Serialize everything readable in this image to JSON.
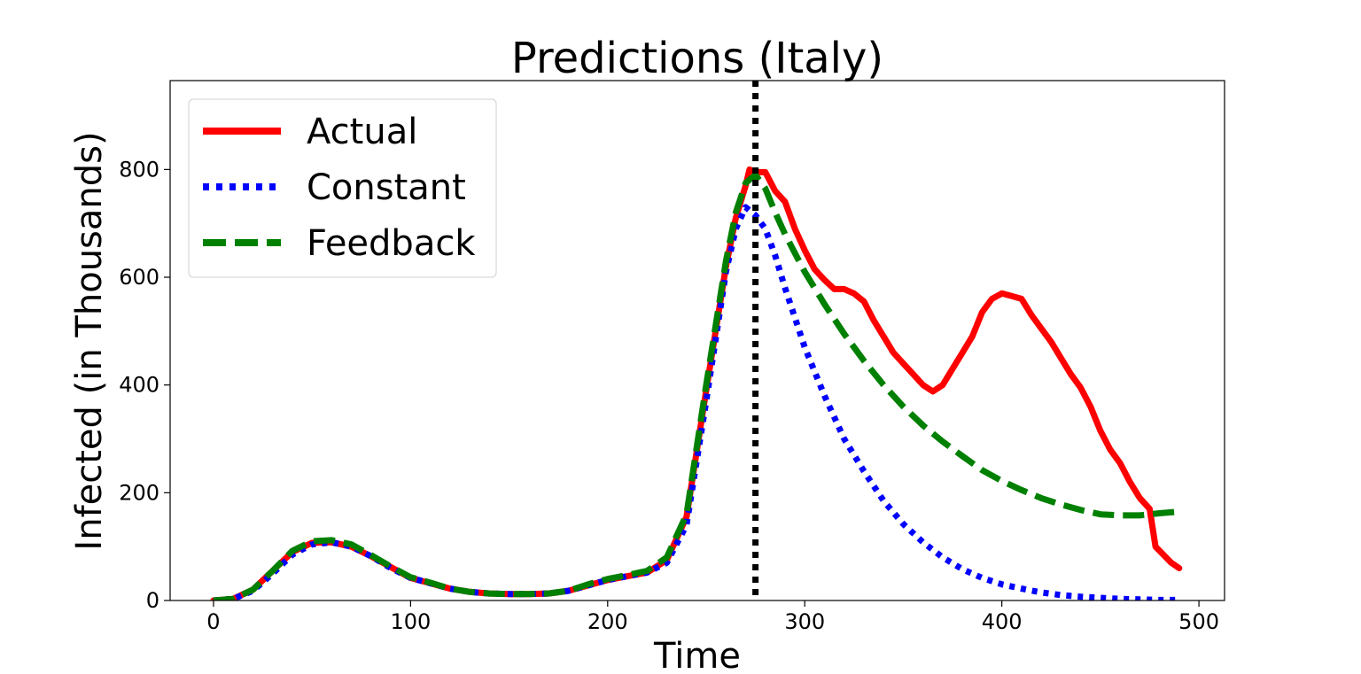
{
  "chart_data": {
    "type": "line",
    "title": "Predictions (Italy)",
    "xlabel": "Time",
    "ylabel": "Infected (in Thousands)",
    "xlim": [
      -22,
      513
    ],
    "ylim": [
      0,
      965
    ],
    "xticks": [
      0,
      100,
      200,
      300,
      400,
      500
    ],
    "yticks": [
      0,
      200,
      400,
      600,
      800
    ],
    "vline": {
      "x": 275,
      "color": "#000000",
      "style": "dotted"
    },
    "legend": {
      "placement": "top-left"
    },
    "series": [
      {
        "name": "Actual",
        "color": "#ff0000",
        "style": "solid",
        "points": [
          [
            0,
            0
          ],
          [
            10,
            3
          ],
          [
            20,
            20
          ],
          [
            30,
            55
          ],
          [
            40,
            90
          ],
          [
            50,
            107
          ],
          [
            60,
            108
          ],
          [
            70,
            100
          ],
          [
            80,
            82
          ],
          [
            90,
            62
          ],
          [
            100,
            42
          ],
          [
            110,
            32
          ],
          [
            120,
            22
          ],
          [
            130,
            16
          ],
          [
            140,
            13
          ],
          [
            150,
            12
          ],
          [
            160,
            12
          ],
          [
            170,
            13
          ],
          [
            180,
            18
          ],
          [
            190,
            28
          ],
          [
            200,
            38
          ],
          [
            210,
            45
          ],
          [
            220,
            52
          ],
          [
            230,
            75
          ],
          [
            240,
            155
          ],
          [
            250,
            390
          ],
          [
            260,
            620
          ],
          [
            265,
            710
          ],
          [
            270,
            770
          ],
          [
            272,
            800
          ],
          [
            275,
            795
          ],
          [
            280,
            795
          ],
          [
            285,
            760
          ],
          [
            290,
            740
          ],
          [
            295,
            690
          ],
          [
            300,
            650
          ],
          [
            305,
            615
          ],
          [
            310,
            595
          ],
          [
            315,
            578
          ],
          [
            320,
            578
          ],
          [
            325,
            570
          ],
          [
            330,
            555
          ],
          [
            335,
            520
          ],
          [
            340,
            490
          ],
          [
            345,
            460
          ],
          [
            350,
            440
          ],
          [
            355,
            420
          ],
          [
            360,
            400
          ],
          [
            365,
            388
          ],
          [
            370,
            400
          ],
          [
            375,
            430
          ],
          [
            380,
            460
          ],
          [
            385,
            490
          ],
          [
            390,
            535
          ],
          [
            395,
            560
          ],
          [
            400,
            570
          ],
          [
            405,
            565
          ],
          [
            410,
            560
          ],
          [
            415,
            530
          ],
          [
            420,
            505
          ],
          [
            425,
            480
          ],
          [
            430,
            450
          ],
          [
            435,
            420
          ],
          [
            440,
            395
          ],
          [
            445,
            360
          ],
          [
            450,
            315
          ],
          [
            455,
            280
          ],
          [
            460,
            255
          ],
          [
            465,
            220
          ],
          [
            470,
            190
          ],
          [
            475,
            170
          ],
          [
            478,
            100
          ],
          [
            482,
            85
          ],
          [
            486,
            70
          ],
          [
            490,
            60
          ]
        ]
      },
      {
        "name": "Constant",
        "color": "#0000ff",
        "style": "dotted",
        "points": [
          [
            0,
            0
          ],
          [
            10,
            3
          ],
          [
            20,
            18
          ],
          [
            30,
            50
          ],
          [
            40,
            85
          ],
          [
            50,
            104
          ],
          [
            60,
            108
          ],
          [
            70,
            100
          ],
          [
            80,
            82
          ],
          [
            90,
            60
          ],
          [
            100,
            42
          ],
          [
            110,
            32
          ],
          [
            120,
            22
          ],
          [
            130,
            16
          ],
          [
            140,
            13
          ],
          [
            150,
            12
          ],
          [
            160,
            12
          ],
          [
            170,
            13
          ],
          [
            180,
            18
          ],
          [
            190,
            28
          ],
          [
            200,
            38
          ],
          [
            210,
            45
          ],
          [
            220,
            52
          ],
          [
            230,
            70
          ],
          [
            240,
            140
          ],
          [
            250,
            370
          ],
          [
            260,
            610
          ],
          [
            265,
            690
          ],
          [
            270,
            730
          ],
          [
            275,
            715
          ],
          [
            280,
            690
          ],
          [
            285,
            640
          ],
          [
            290,
            580
          ],
          [
            300,
            470
          ],
          [
            310,
            380
          ],
          [
            320,
            300
          ],
          [
            330,
            240
          ],
          [
            340,
            185
          ],
          [
            350,
            142
          ],
          [
            360,
            108
          ],
          [
            370,
            80
          ],
          [
            380,
            58
          ],
          [
            390,
            42
          ],
          [
            400,
            30
          ],
          [
            410,
            22
          ],
          [
            420,
            15
          ],
          [
            430,
            10
          ],
          [
            440,
            7
          ],
          [
            450,
            5
          ],
          [
            460,
            3
          ],
          [
            470,
            2
          ],
          [
            480,
            1
          ],
          [
            490,
            1
          ]
        ]
      },
      {
        "name": "Feedback",
        "color": "#008000",
        "style": "dashed",
        "points": [
          [
            0,
            0
          ],
          [
            10,
            3
          ],
          [
            20,
            20
          ],
          [
            30,
            55
          ],
          [
            40,
            92
          ],
          [
            50,
            110
          ],
          [
            60,
            112
          ],
          [
            70,
            104
          ],
          [
            80,
            84
          ],
          [
            90,
            63
          ],
          [
            100,
            43
          ],
          [
            110,
            33
          ],
          [
            120,
            22
          ],
          [
            130,
            16
          ],
          [
            140,
            13
          ],
          [
            150,
            12
          ],
          [
            160,
            12
          ],
          [
            170,
            13
          ],
          [
            180,
            18
          ],
          [
            190,
            30
          ],
          [
            200,
            40
          ],
          [
            210,
            47
          ],
          [
            220,
            55
          ],
          [
            230,
            80
          ],
          [
            240,
            160
          ],
          [
            250,
            400
          ],
          [
            260,
            630
          ],
          [
            265,
            720
          ],
          [
            270,
            775
          ],
          [
            275,
            790
          ],
          [
            280,
            765
          ],
          [
            285,
            720
          ],
          [
            290,
            680
          ],
          [
            300,
            610
          ],
          [
            310,
            550
          ],
          [
            320,
            495
          ],
          [
            330,
            445
          ],
          [
            340,
            400
          ],
          [
            350,
            360
          ],
          [
            360,
            325
          ],
          [
            370,
            295
          ],
          [
            380,
            268
          ],
          [
            390,
            242
          ],
          [
            400,
            222
          ],
          [
            410,
            205
          ],
          [
            420,
            190
          ],
          [
            430,
            178
          ],
          [
            440,
            168
          ],
          [
            450,
            160
          ],
          [
            460,
            158
          ],
          [
            470,
            158
          ],
          [
            480,
            162
          ],
          [
            490,
            165
          ]
        ]
      }
    ]
  }
}
